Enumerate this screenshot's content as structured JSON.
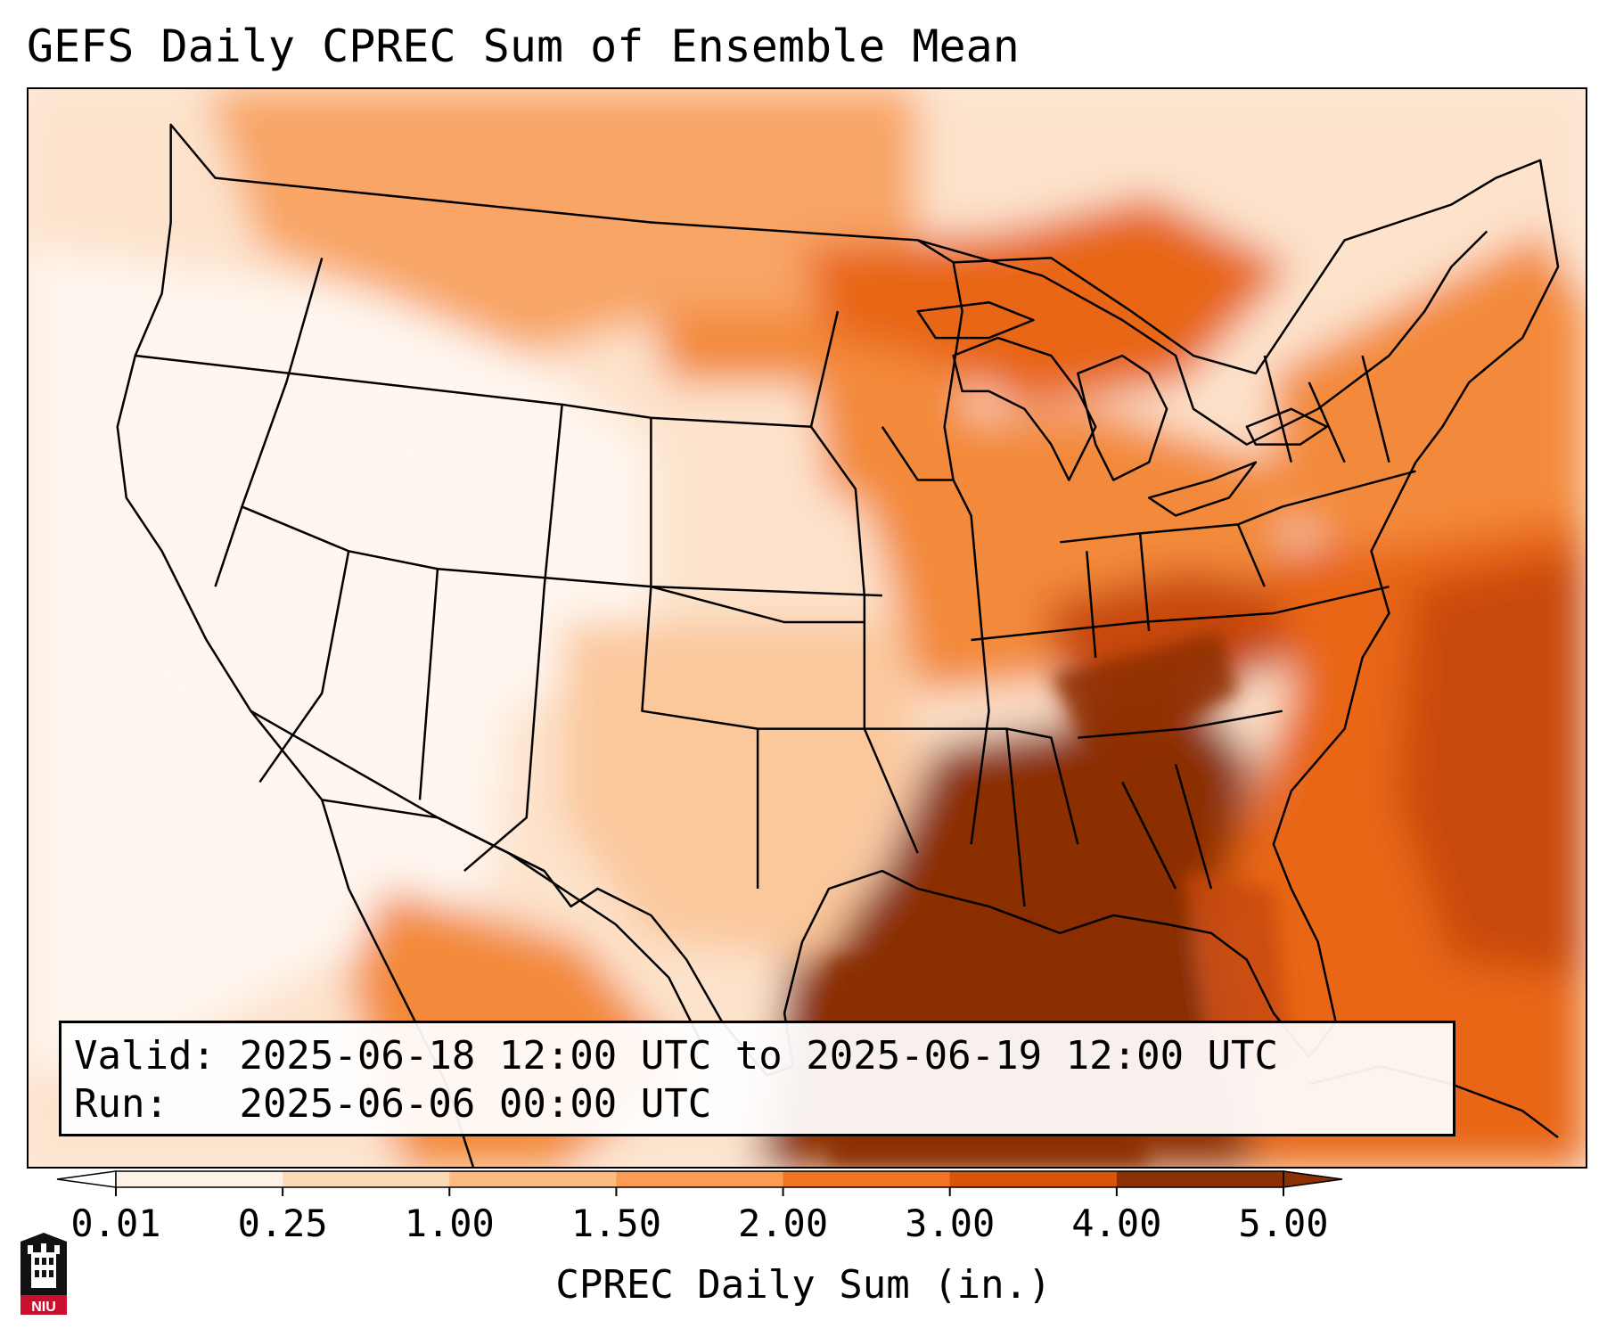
{
  "title": "GEFS Daily CPREC Sum of Ensemble Mean",
  "info": {
    "valid_label": "Valid:",
    "valid_value": "2025-06-18 12:00 UTC to 2025-06-19 12:00 UTC",
    "run_label": "Run:",
    "run_value": "2025-06-06 00:00 UTC"
  },
  "colorbar": {
    "label": "CPREC Daily Sum (in.)",
    "ticks": [
      "0.01",
      "0.25",
      "1.00",
      "1.50",
      "2.00",
      "3.00",
      "4.00",
      "5.00"
    ],
    "colors": [
      "#fef2e6",
      "#fddab6",
      "#fdbb84",
      "#fc9b52",
      "#f27322",
      "#d9530b",
      "#8b2f05"
    ],
    "extend": "both"
  },
  "logo": {
    "text": "NIU",
    "colors": {
      "red": "#c8102e",
      "black": "#111111"
    }
  },
  "map": {
    "region": "Contiguous United States",
    "palette": {
      "trace": "#fef6ef",
      "light": "#fde3cc",
      "low": "#fbc89c",
      "mid": "#f8a566",
      "midhigh": "#f38a3a",
      "high": "#e86616",
      "veryhigh": "#c84a07",
      "max": "#8b2f05"
    }
  }
}
